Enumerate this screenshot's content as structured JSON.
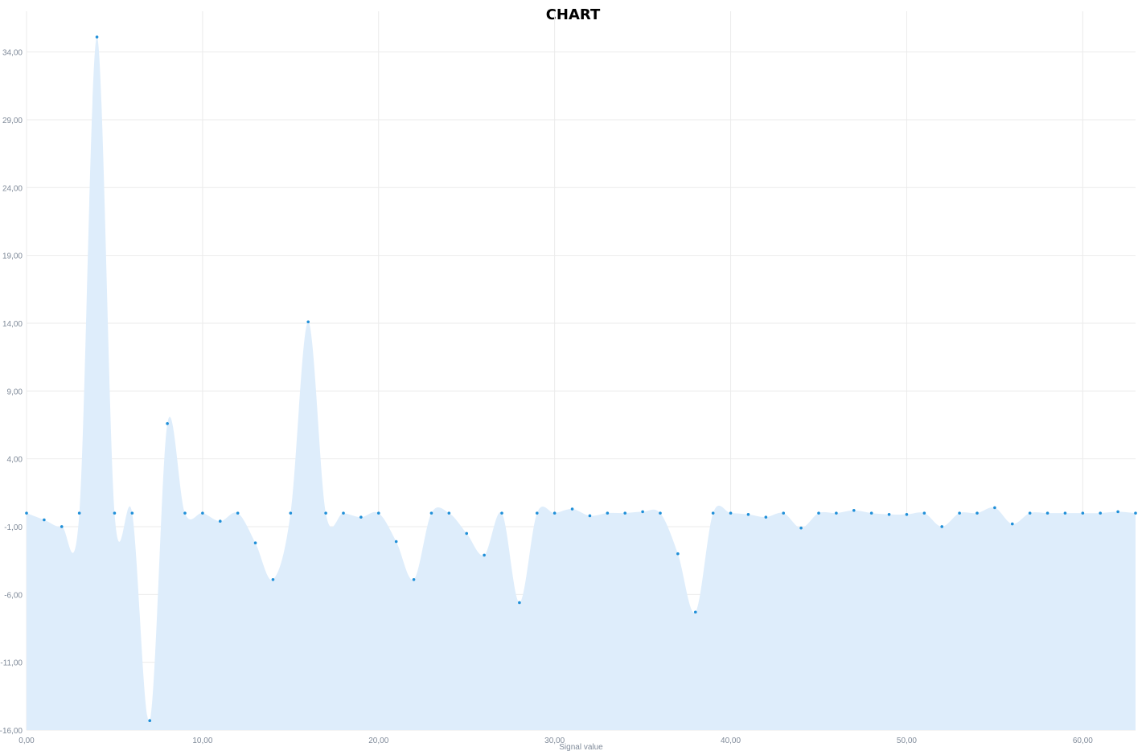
{
  "chart_data": {
    "type": "area",
    "title": "CHART",
    "xlabel": "Signal value",
    "ylabel": "",
    "xlim": [
      0,
      63
    ],
    "ylim": [
      -16,
      37
    ],
    "x_ticks": [
      0,
      10,
      20,
      30,
      40,
      50,
      60
    ],
    "y_ticks": [
      -16,
      -11,
      -6,
      -1,
      4,
      9,
      14,
      19,
      24,
      29,
      34
    ],
    "x_tick_labels": [
      "0,00",
      "10,00",
      "20,00",
      "30,00",
      "40,00",
      "50,00",
      "60,00"
    ],
    "y_tick_labels": [
      "-16,00",
      "-11,00",
      "-6,00",
      "-1,00",
      "4,00",
      "9,00",
      "14,00",
      "19,00",
      "24,00",
      "29,00",
      "34,00"
    ],
    "grid": true,
    "legend": "none",
    "smooth": true,
    "colors": {
      "fill": "#deedfb",
      "point": "#1f8fd8",
      "grid": "#ebebeb",
      "label": "#7f8a99"
    },
    "x": [
      0,
      1,
      2,
      3,
      4,
      5,
      6,
      7,
      8,
      9,
      10,
      11,
      12,
      13,
      14,
      15,
      16,
      17,
      18,
      19,
      20,
      21,
      22,
      23,
      24,
      25,
      26,
      27,
      28,
      29,
      30,
      31,
      32,
      33,
      34,
      35,
      36,
      37,
      38,
      39,
      40,
      41,
      42,
      43,
      44,
      45,
      46,
      47,
      48,
      49,
      50,
      51,
      52,
      53,
      54,
      55,
      56,
      57,
      58,
      59,
      60,
      61,
      62,
      63
    ],
    "values": [
      0,
      -0.5,
      -1,
      0,
      35.1,
      0,
      0,
      -15.3,
      6.6,
      0,
      0,
      -0.6,
      0,
      -2.2,
      -4.9,
      0,
      14.1,
      0,
      0,
      -0.3,
      0,
      -2.1,
      -4.9,
      0,
      0,
      -1.5,
      -3.1,
      0,
      -6.6,
      0,
      0,
      0.3,
      -0.2,
      0,
      0,
      0.1,
      0,
      -3,
      -7.3,
      0,
      0,
      -0.1,
      -0.3,
      0,
      -1.1,
      0,
      0,
      0.2,
      0,
      -0.1,
      -0.1,
      0,
      -1,
      0,
      0,
      0.4,
      -0.8,
      0,
      0,
      0,
      0,
      0,
      0.1,
      0
    ]
  }
}
